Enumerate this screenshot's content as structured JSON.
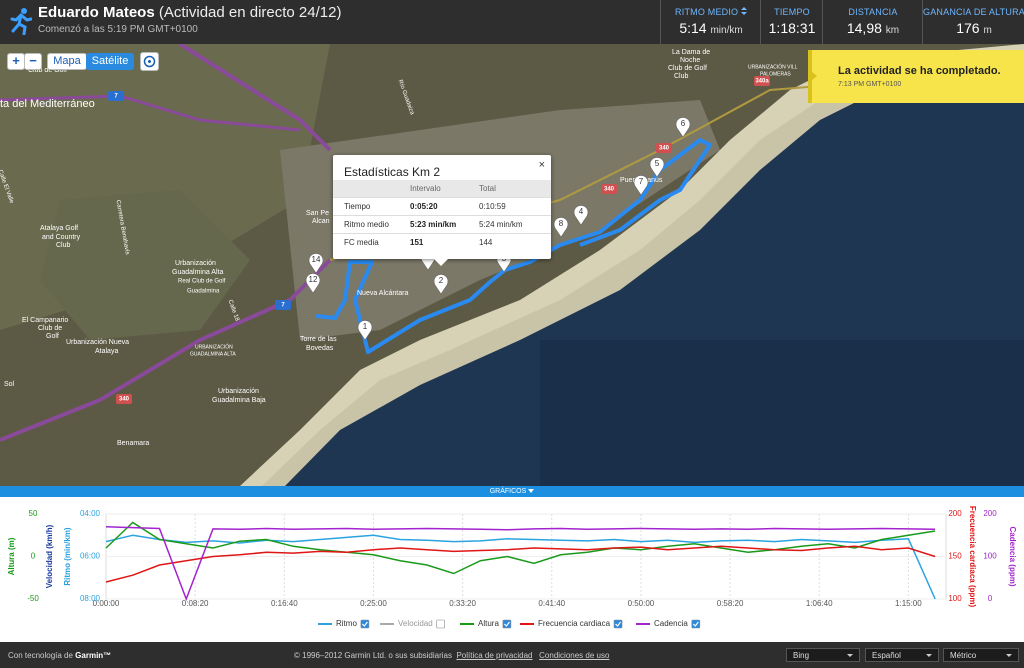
{
  "header": {
    "name": "Eduardo Mateos",
    "activity": "(Actividad en directo 24/12)",
    "started": "Comenzó a las 5:19 PM GMT+0100",
    "stats": [
      {
        "label": "RITMO MEDIO",
        "value": "5:14",
        "unit": "min/km"
      },
      {
        "label": "TIEMPO",
        "value": "1:18:31"
      },
      {
        "label": "DISTANCIA",
        "value": "14,98",
        "unit": "km"
      },
      {
        "label": "GANANCIA DE ALTURA",
        "value": "176",
        "unit": "m"
      }
    ]
  },
  "map": {
    "controls": {
      "zoom_in": "+",
      "zoom_out": "−",
      "map": "Mapa",
      "satellite": "Satélite"
    },
    "labels": [
      "ta del Mediterráneo",
      "Atalaya Golf",
      "and Country",
      "Club",
      "Urbanización",
      "Guadalmina Alta",
      "Real Club de Golf",
      "Guadalmina",
      "El Campanario",
      "Club de",
      "Golf",
      "Urbanización Nueva",
      "Atalaya",
      "URBANIZACIÓN",
      "GUADALMINA ALTA",
      "Urbanización",
      "Guadalmina Baja",
      "Benamara",
      "Nueva Alcántara",
      "Torre de las",
      "Bovedas",
      "San Pe",
      "Alcan",
      "Puerto Banús",
      "La Dama de",
      "Noche",
      "Club de Golf",
      "Club",
      "URBANIZACIÓN VILL",
      "PALOMERAS",
      "Carretera Benahavís",
      "Río Guadaiza",
      "Calle 18",
      "Club de Golf",
      "Sol",
      "Calle El Valle"
    ],
    "roads": [
      "7",
      "7",
      "340",
      "340",
      "340",
      "340a"
    ],
    "markers": [
      "1",
      "2",
      "3",
      "4",
      "5",
      "6",
      "7",
      "8",
      "10",
      "12",
      "14"
    ]
  },
  "notification": {
    "title": "La actividad se ha completado.",
    "time": "7:13 PM GMT+0100"
  },
  "popup": {
    "title": "Estadísticas Km 2",
    "close": "×",
    "columns": [
      "Intervalo",
      "Total"
    ],
    "rows": [
      [
        "Tiempo",
        "0:05:20",
        "0:10:59"
      ],
      [
        "Ritmo medio",
        "5:23 min/km",
        "5:24 min/km"
      ],
      [
        "FC media",
        "151",
        "144"
      ]
    ]
  },
  "charts_tab": "GRÁFICOS",
  "chart_data": {
    "type": "line",
    "xlim": [
      0,
      4711
    ],
    "xticks": [
      {
        "value": 0,
        "label": "0:00:00"
      },
      {
        "value": 500,
        "label": "0:08:20"
      },
      {
        "value": 1000,
        "label": "0:16:40"
      },
      {
        "value": 1500,
        "label": "0:25:00"
      },
      {
        "value": 2000,
        "label": "0:33:20"
      },
      {
        "value": 2500,
        "label": "0:41:40"
      },
      {
        "value": 3000,
        "label": "0:50:00"
      },
      {
        "value": 3500,
        "label": "0:58:20"
      },
      {
        "value": 4000,
        "label": "1:06:40"
      },
      {
        "value": 4500,
        "label": "1:15:00"
      }
    ],
    "grid": true,
    "axes": [
      {
        "label": "Altura (m)",
        "color": "#1a9a1a",
        "side": "left",
        "ylim": [
          -50,
          50
        ],
        "yticks": [
          -50,
          0,
          50
        ]
      },
      {
        "label": "Velocidad (km/h)",
        "color": "#1b3c9e",
        "side": "left"
      },
      {
        "label": "Ritmo (min/km)",
        "color": "#2aa3e0",
        "side": "left",
        "ylim": [
          480,
          240
        ],
        "yticks": [
          {
            "value": 480,
            "label": "08:00"
          },
          {
            "value": 360,
            "label": "06:00"
          },
          {
            "value": 240,
            "label": "04:00"
          }
        ]
      },
      {
        "label": "Frecuencia cardiaca (ppm)",
        "color": "#e01515",
        "side": "right",
        "ylim": [
          100,
          200
        ],
        "yticks": [
          100,
          150,
          200
        ]
      },
      {
        "label": "Cadencia (ppm)",
        "color": "#a323cf",
        "side": "right",
        "ylim": [
          0,
          200
        ],
        "yticks": [
          0,
          100,
          200
        ]
      }
    ],
    "x": [
      0,
      150,
      300,
      450,
      600,
      750,
      900,
      1050,
      1200,
      1350,
      1500,
      1650,
      1800,
      1950,
      2100,
      2250,
      2400,
      2550,
      2700,
      2850,
      3000,
      3150,
      3300,
      3450,
      3600,
      3750,
      3900,
      4050,
      4200,
      4350,
      4500,
      4650
    ],
    "series": [
      {
        "name": "Ritmo",
        "color": "#2aa3e0",
        "axis": 2,
        "checked": true,
        "values": [
          318,
          300,
          312,
          320,
          316,
          322,
          314,
          318,
          312,
          306,
          300,
          312,
          314,
          318,
          316,
          310,
          312,
          314,
          316,
          312,
          318,
          314,
          320,
          316,
          314,
          318,
          312,
          316,
          320,
          314,
          310,
          480
        ]
      },
      {
        "name": "Velocidad",
        "color": "#aaaaaa",
        "axis": 1,
        "checked": false
      },
      {
        "name": "Altura",
        "color": "#1a9a1a",
        "axis": 0,
        "checked": true,
        "values": [
          10,
          40,
          20,
          15,
          10,
          18,
          20,
          12,
          8,
          5,
          2,
          -5,
          -10,
          -20,
          -5,
          0,
          -8,
          2,
          5,
          10,
          8,
          12,
          15,
          10,
          5,
          8,
          12,
          15,
          10,
          20,
          25,
          30
        ]
      },
      {
        "name": "Frecuencia cardiaca",
        "color": "#e01515",
        "axis": 3,
        "checked": true,
        "values": [
          120,
          128,
          140,
          145,
          150,
          152,
          155,
          154,
          156,
          155,
          158,
          160,
          158,
          156,
          157,
          158,
          160,
          159,
          158,
          160,
          161,
          158,
          160,
          162,
          160,
          158,
          157,
          160,
          162,
          158,
          160,
          150
        ]
      },
      {
        "name": "Cadencia",
        "color": "#a323cf",
        "axis": 4,
        "checked": true,
        "values": [
          170,
          168,
          166,
          0,
          165,
          164,
          166,
          164,
          165,
          166,
          164,
          165,
          166,
          165,
          164,
          163,
          165,
          166,
          164,
          165,
          166,
          165,
          164,
          165,
          164,
          166,
          165,
          164,
          165,
          166,
          165,
          164
        ]
      }
    ]
  },
  "footer": {
    "powered": "Con tecnología de",
    "brand": "Garmin™",
    "copyright": "© 1996–2012 Garmin Ltd. o sus subsidiarias",
    "links": [
      "Política de privacidad",
      "Condiciones de uso"
    ],
    "selects": [
      "Bing",
      "Español",
      "Métrico"
    ]
  }
}
